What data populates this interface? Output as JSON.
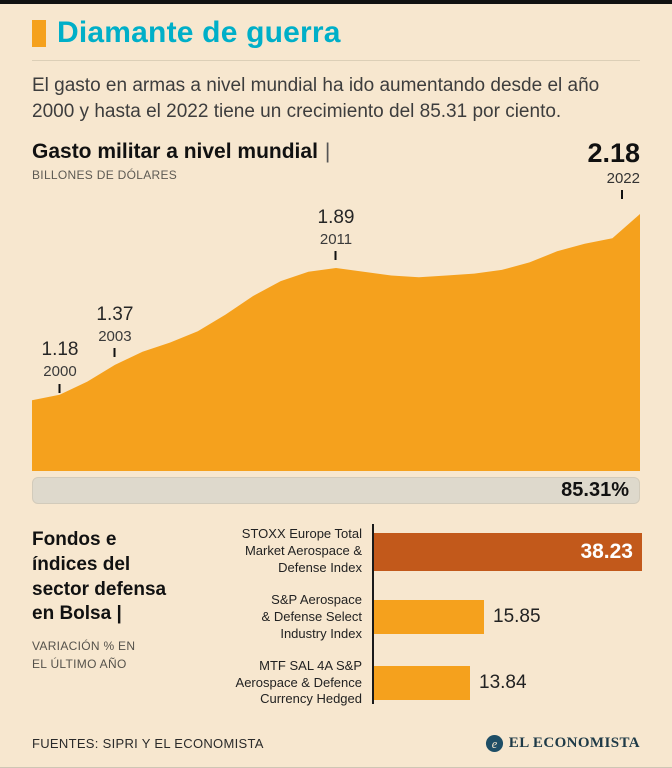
{
  "header": {
    "title": "Diamante de guerra",
    "intro": "El gasto en armas a nivel mundial ha ido aumentando desde el año 2000 y hasta el 2022 tiene un crecimiento del 85.31 por ciento."
  },
  "decor": {
    "pipe": "|"
  },
  "colors": {
    "background": "#F7E7CF",
    "accent_orange": "#F5A11D",
    "dark_orange": "#C2591B",
    "title_cyan": "#00AFC8",
    "growth_track": "#DED9CC"
  },
  "growth": {
    "label": "85.31%"
  },
  "chart_data": [
    {
      "type": "area",
      "title": "Gasto militar a nivel mundial",
      "units": "BILLONES DE DÓLARES",
      "x": [
        2000,
        2001,
        2002,
        2003,
        2004,
        2005,
        2006,
        2007,
        2008,
        2009,
        2010,
        2011,
        2012,
        2013,
        2014,
        2015,
        2016,
        2017,
        2018,
        2019,
        2020,
        2021,
        2022
      ],
      "values": [
        1.18,
        1.21,
        1.28,
        1.37,
        1.44,
        1.49,
        1.55,
        1.64,
        1.74,
        1.82,
        1.87,
        1.89,
        1.87,
        1.85,
        1.84,
        1.85,
        1.86,
        1.88,
        1.92,
        1.98,
        2.02,
        2.05,
        2.18
      ],
      "ylim": [
        0.8,
        2.25
      ],
      "xlabel": "",
      "ylabel": "Billones de dólares",
      "grid": false,
      "annotations": [
        {
          "year": "2000",
          "value": "1.18",
          "in_chart": true
        },
        {
          "year": "2003",
          "value": "1.37",
          "in_chart": true
        },
        {
          "year": "2011",
          "value": "1.89",
          "in_chart": true
        },
        {
          "year": "2022",
          "value": "2.18",
          "in_chart": false
        }
      ]
    },
    {
      "type": "bar",
      "orientation": "horizontal",
      "title": "Fondos e\níndices del\nsector defensa\nen Bolsa |",
      "subtitle": "VARIACIÓN % EN\nEL ÚLTIMO AÑO",
      "categories": [
        "STOXX Europe Total\nMarket Aerospace &\nDefense Index",
        "S&P Aerospace\n& Defense Select\nIndustry Index",
        "MTF SAL 4A S&P\nAerospace & Defence\nCurrency Hedged"
      ],
      "values": [
        38.23,
        15.85,
        13.84
      ],
      "xlim": [
        0,
        40
      ],
      "highlight_index": 0
    }
  ],
  "footer": {
    "sources": "FUENTES: SIPRI Y EL ECONOMISTA",
    "brand": "EL ECONOMISTA",
    "brand_icon": "el-economista-e-circle"
  }
}
